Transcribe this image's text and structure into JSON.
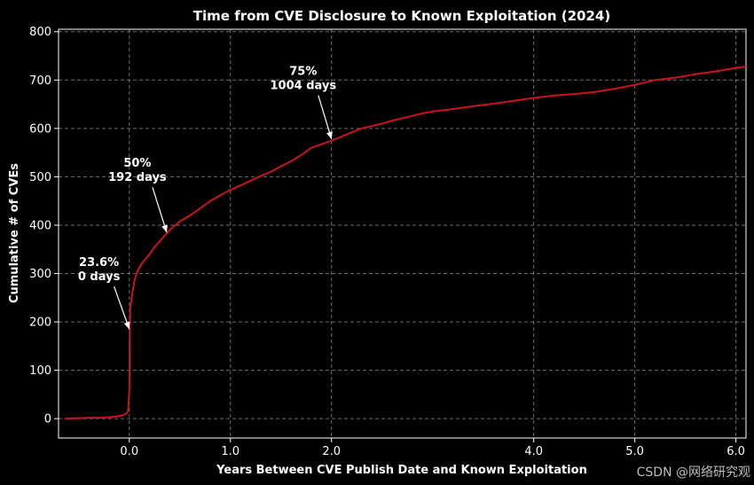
{
  "chart_data": {
    "type": "line",
    "title": "Time from CVE Disclosure to Known Exploitation (2024)",
    "xlabel": "Years Between CVE Publish Date and Known Exploitation",
    "ylabel": "Cumulative # of CVEs",
    "xlim": [
      -0.7,
      6.1
    ],
    "ylim": [
      -40,
      805
    ],
    "x_ticks": [
      0,
      1,
      2,
      4,
      5,
      6
    ],
    "x_tick_labels": [
      "0.0",
      "1.0",
      "2.0",
      "4.0",
      "5.0",
      "6.0"
    ],
    "y_ticks": [
      0,
      100,
      200,
      300,
      400,
      500,
      600,
      700,
      800
    ],
    "y_tick_labels": [
      "0",
      "100",
      "200",
      "300",
      "400",
      "500",
      "600",
      "700",
      "800"
    ],
    "grid": true,
    "line_color": "#c8141c",
    "series": [
      {
        "x": [
          -0.64,
          -0.5,
          -0.4,
          -0.3,
          -0.2,
          -0.1,
          -0.05,
          -0.02,
          -0.01,
          0,
          0.005,
          0.01,
          0.03,
          0.05,
          0.08,
          0.12,
          0.16,
          0.2,
          0.25,
          0.3,
          0.35,
          0.4,
          0.5,
          0.6,
          0.7,
          0.8,
          0.9,
          1.0,
          1.1,
          1.2,
          1.3,
          1.4,
          1.5,
          1.6,
          1.7,
          1.8,
          1.9,
          2.0,
          2.1,
          2.2,
          2.3,
          2.4,
          2.5,
          2.6,
          2.7,
          2.8,
          2.9,
          3.0,
          3.2,
          3.4,
          3.6,
          3.8,
          4.0,
          4.2,
          4.4,
          4.6,
          4.8,
          5.0,
          5.2,
          5.4,
          5.6,
          5.8,
          6.0,
          6.1
        ],
        "y": [
          0,
          1,
          2,
          2,
          3,
          5,
          8,
          12,
          20,
          60,
          180,
          230,
          260,
          285,
          305,
          320,
          330,
          340,
          355,
          367,
          378,
          390,
          408,
          420,
          435,
          450,
          462,
          473,
          482,
          492,
          502,
          510,
          522,
          532,
          545,
          560,
          567,
          575,
          583,
          592,
          600,
          605,
          610,
          616,
          621,
          626,
          631,
          635,
          640,
          646,
          651,
          657,
          663,
          668,
          671,
          675,
          682,
          690,
          700,
          705,
          712,
          718,
          725,
          728
        ]
      }
    ],
    "annotations": [
      {
        "lines": [
          "23.6%",
          "0 days"
        ],
        "x": 0.0,
        "y": 185
      },
      {
        "lines": [
          "50%",
          "192 days"
        ],
        "x": 0.37,
        "y": 385
      },
      {
        "lines": [
          "75%",
          "1004 days"
        ],
        "x": 2.0,
        "y": 578
      }
    ]
  },
  "watermark": "CSDN @网络研究观"
}
